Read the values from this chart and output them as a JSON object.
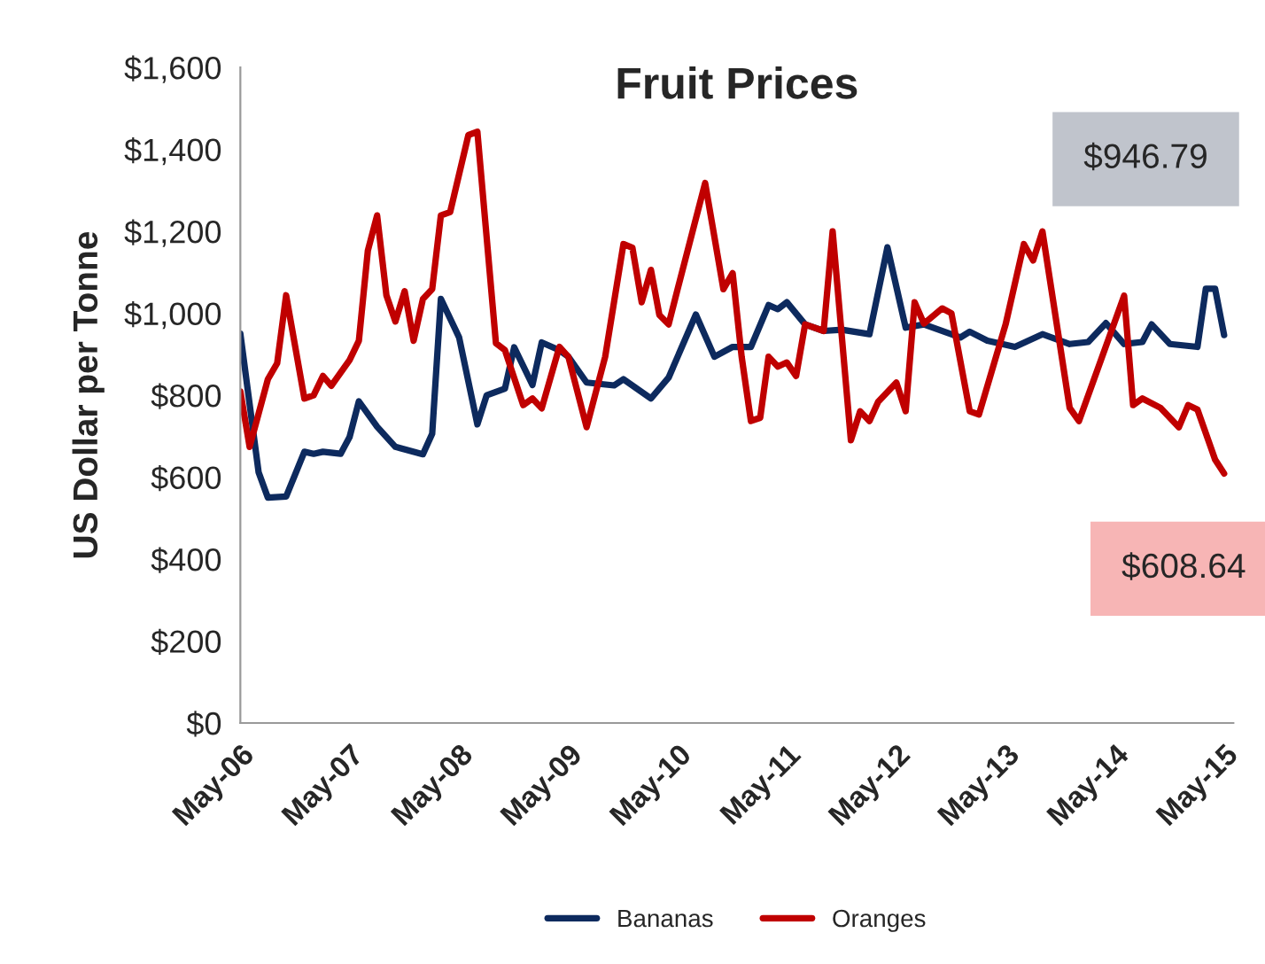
{
  "chart_data": {
    "type": "line",
    "title": "Fruit Prices",
    "ylabel": "US Dollar per Tonne",
    "xlim": [
      "2006-05",
      "2015-06"
    ],
    "xticks": [
      {
        "value": "2006-05",
        "label": "May-06"
      },
      {
        "value": "2007-05",
        "label": "May-07"
      },
      {
        "value": "2008-05",
        "label": "May-08"
      },
      {
        "value": "2009-05",
        "label": "May-09"
      },
      {
        "value": "2010-05",
        "label": "May-10"
      },
      {
        "value": "2011-05",
        "label": "May-11"
      },
      {
        "value": "2012-05",
        "label": "May-12"
      },
      {
        "value": "2013-05",
        "label": "May-13"
      },
      {
        "value": "2014-05",
        "label": "May-14"
      },
      {
        "value": "2015-05",
        "label": "May-15"
      }
    ],
    "ylim": [
      0,
      1600
    ],
    "yticks": [
      {
        "value": 0,
        "label": "$0"
      },
      {
        "value": 200,
        "label": "$200"
      },
      {
        "value": 400,
        "label": "$400"
      },
      {
        "value": 600,
        "label": "$600"
      },
      {
        "value": 800,
        "label": "$800"
      },
      {
        "value": 1000,
        "label": "$1,000"
      },
      {
        "value": 1200,
        "label": "$1,200"
      },
      {
        "value": 1400,
        "label": "$1,400"
      },
      {
        "value": 1600,
        "label": "$1,600"
      }
    ],
    "grid": false,
    "legend": "bottom",
    "marker": "none",
    "line_style": "solid",
    "series": [
      {
        "name": "Bananas",
        "color": "#0d2a5e",
        "x": [
          "2006-05",
          "2006-07",
          "2006-08",
          "2006-10",
          "2006-12",
          "2007-01",
          "2007-02",
          "2007-04",
          "2007-05",
          "2007-06",
          "2007-08",
          "2007-10",
          "2008-01",
          "2008-02",
          "2008-03",
          "2008-05",
          "2008-07",
          "2008-08",
          "2008-10",
          "2008-11",
          "2009-01",
          "2009-02",
          "2009-04",
          "2009-05",
          "2009-07",
          "2009-10",
          "2009-11",
          "2010-02",
          "2010-04",
          "2010-07",
          "2010-09",
          "2010-11",
          "2011-01",
          "2011-03",
          "2011-04",
          "2011-05",
          "2011-07",
          "2011-09",
          "2011-11",
          "2012-02",
          "2012-04",
          "2012-06",
          "2012-08",
          "2012-12",
          "2013-01",
          "2013-03",
          "2013-06",
          "2013-09",
          "2013-12",
          "2014-02",
          "2014-04",
          "2014-06",
          "2014-08",
          "2014-09",
          "2014-11",
          "2015-02",
          "2015-03",
          "2015-04",
          "2015-05"
        ],
        "values": [
          950,
          612,
          550,
          553,
          662,
          657,
          662,
          657,
          698,
          785,
          723,
          674,
          656,
          706,
          1035,
          941,
          729,
          800,
          816,
          917,
          825,
          929,
          910,
          894,
          831,
          824,
          839,
          792,
          843,
          997,
          894,
          918,
          918,
          1020,
          1010,
          1027,
          973,
          957,
          960,
          949,
          1161,
          965,
          973,
          941,
          955,
          933,
          918,
          949,
          925,
          930,
          976,
          925,
          930,
          973,
          925,
          918,
          1060,
          1060,
          947
        ]
      },
      {
        "name": "Oranges",
        "color": "#c00000",
        "x": [
          "2006-05",
          "2006-06",
          "2006-08",
          "2006-09",
          "2006-10",
          "2006-12",
          "2007-01",
          "2007-02",
          "2007-03",
          "2007-05",
          "2007-06",
          "2007-07",
          "2007-08",
          "2007-09",
          "2007-10",
          "2007-11",
          "2007-12",
          "2008-01",
          "2008-02",
          "2008-03",
          "2008-04",
          "2008-06",
          "2008-07",
          "2008-09",
          "2008-10",
          "2008-12",
          "2009-01",
          "2009-02",
          "2009-04",
          "2009-05",
          "2009-07",
          "2009-09",
          "2009-11",
          "2009-12",
          "2010-01",
          "2010-02",
          "2010-03",
          "2010-04",
          "2010-05",
          "2010-08",
          "2010-10",
          "2010-11",
          "2010-12",
          "2011-01",
          "2011-02",
          "2011-03",
          "2011-04",
          "2011-05",
          "2011-06",
          "2011-07",
          "2011-09",
          "2011-10",
          "2011-12",
          "2012-01",
          "2012-02",
          "2012-03",
          "2012-05",
          "2012-06",
          "2012-07",
          "2012-08",
          "2012-10",
          "2012-11",
          "2013-01",
          "2013-02",
          "2013-05",
          "2013-07",
          "2013-08",
          "2013-09",
          "2013-12",
          "2014-01",
          "2014-06",
          "2014-07",
          "2014-08",
          "2014-10",
          "2014-12",
          "2015-01",
          "2015-02",
          "2015-04",
          "2015-05"
        ],
        "values": [
          809,
          674,
          839,
          878,
          1044,
          792,
          800,
          847,
          823,
          886,
          933,
          1153,
          1239,
          1044,
          980,
          1054,
          933,
          1035,
          1059,
          1239,
          1247,
          1435,
          1443,
          927,
          910,
          776,
          792,
          768,
          918,
          894,
          722,
          894,
          1169,
          1160,
          1027,
          1106,
          996,
          973,
          1059,
          1318,
          1059,
          1098,
          894,
          737,
          745,
          894,
          870,
          880,
          847,
          973,
          957,
          1200,
          690,
          761,
          737,
          784,
          831,
          761,
          1027,
          975,
          1012,
          1000,
          761,
          753,
          973,
          1169,
          1129,
          1200,
          769,
          737,
          1043,
          776,
          792,
          769,
          722,
          776,
          765,
          643,
          609
        ]
      }
    ],
    "annotations": [
      "$946.79",
      "$608.64"
    ]
  }
}
